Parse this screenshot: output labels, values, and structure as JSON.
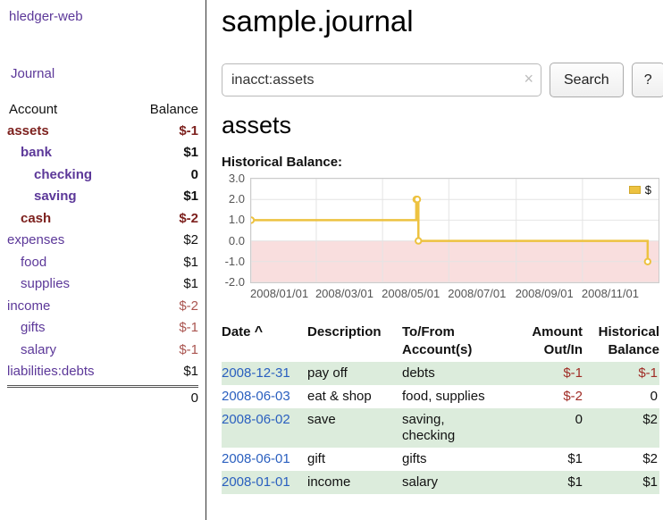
{
  "colors": {
    "purple": "#5c3899",
    "negative-dark": "#7d211e",
    "negative-mid": "#a02c26",
    "negative-light": "#aa5550",
    "link-blue": "#2a5fbf",
    "row-green": "#dcecdc",
    "chart-line": "#edc240",
    "grid": "#e4e4e4"
  },
  "sidebar": {
    "app_title": "hledger-web",
    "journal_link": "Journal",
    "header": {
      "account": "Account",
      "balance": "Balance"
    },
    "accounts": [
      {
        "name": "assets",
        "balance": "$-1",
        "depth": 0,
        "bold": true,
        "negative_name": true,
        "negative_balance": true
      },
      {
        "name": "bank",
        "balance": "$1",
        "depth": 1,
        "bold": true,
        "negative_name": false,
        "negative_balance": false
      },
      {
        "name": "checking",
        "balance": "0",
        "depth": 2,
        "bold": true,
        "negative_name": false,
        "negative_balance": false
      },
      {
        "name": "saving",
        "balance": "$1",
        "depth": 2,
        "bold": true,
        "negative_name": false,
        "negative_balance": false
      },
      {
        "name": "cash",
        "balance": "$-2",
        "depth": 1,
        "bold": true,
        "negative_name": true,
        "negative_balance": true
      },
      {
        "name": "expenses",
        "balance": "$2",
        "depth": 0,
        "bold": false,
        "negative_name": false,
        "negative_balance": false
      },
      {
        "name": "food",
        "balance": "$1",
        "depth": 1,
        "bold": false,
        "negative_name": false,
        "negative_balance": false
      },
      {
        "name": "supplies",
        "balance": "$1",
        "depth": 1,
        "bold": false,
        "negative_name": false,
        "negative_balance": false
      },
      {
        "name": "income",
        "balance": "$-2",
        "depth": 0,
        "bold": false,
        "negative_name": false,
        "negative_balance": true
      },
      {
        "name": "gifts",
        "balance": "$-1",
        "depth": 1,
        "bold": false,
        "negative_name": false,
        "negative_balance": true
      },
      {
        "name": "salary",
        "balance": "$-1",
        "depth": 1,
        "bold": false,
        "negative_name": false,
        "negative_balance": true
      },
      {
        "name": "liabilities:debts",
        "balance": "$1",
        "depth": 0,
        "bold": false,
        "negative_name": false,
        "negative_balance": false
      }
    ],
    "total": "0"
  },
  "main": {
    "title": "sample.journal",
    "search": {
      "value": "inacct:assets",
      "clear_icon": "×",
      "button_label": "Search",
      "help_label": "?"
    },
    "account_heading": "assets"
  },
  "chart_data": {
    "type": "line",
    "title": "Historical Balance:",
    "legend_position": "top-right",
    "x_range": [
      "2008-01-01",
      "2009-01-10"
    ],
    "ylim": [
      -2,
      3
    ],
    "y_ticks": [
      "3.0",
      "2.0",
      "1.0",
      "0.0",
      "-1.0",
      "-2.0"
    ],
    "x_ticks": [
      "2008/01/01",
      "2008/03/01",
      "2008/05/01",
      "2008/07/01",
      "2008/09/01",
      "2008/11/01"
    ],
    "fill_below_zero": "#f9dede",
    "series": [
      {
        "name": "$",
        "color": "#edc240",
        "step": true,
        "points": [
          {
            "date": "2008-01-01",
            "value": 1
          },
          {
            "date": "2008-06-01",
            "value": 2
          },
          {
            "date": "2008-06-02",
            "value": 2
          },
          {
            "date": "2008-06-03",
            "value": 0
          },
          {
            "date": "2008-12-31",
            "value": -1
          }
        ]
      }
    ]
  },
  "table": {
    "headers": [
      "Date",
      "Description",
      "To/From Account(s)",
      "Amount Out/In",
      "Historical Balance"
    ],
    "sort_indicator": "^",
    "rows": [
      {
        "date": "2008-12-31",
        "description": "pay off",
        "accounts": "debts",
        "amount": "$-1",
        "amount_negative": true,
        "balance": "$-1",
        "balance_negative": true
      },
      {
        "date": "2008-06-03",
        "description": "eat & shop",
        "accounts": "food, supplies",
        "amount": "$-2",
        "amount_negative": true,
        "balance": "0",
        "balance_negative": false
      },
      {
        "date": "2008-06-02",
        "description": "save",
        "accounts": "saving,\nchecking",
        "amount": "0",
        "amount_negative": false,
        "balance": "$2",
        "balance_negative": false
      },
      {
        "date": "2008-06-01",
        "description": "gift",
        "accounts": "gifts",
        "amount": "$1",
        "amount_negative": false,
        "balance": "$2",
        "balance_negative": false
      },
      {
        "date": "2008-01-01",
        "description": "income",
        "accounts": "salary",
        "amount": "$1",
        "amount_negative": false,
        "balance": "$1",
        "balance_negative": false
      }
    ]
  }
}
